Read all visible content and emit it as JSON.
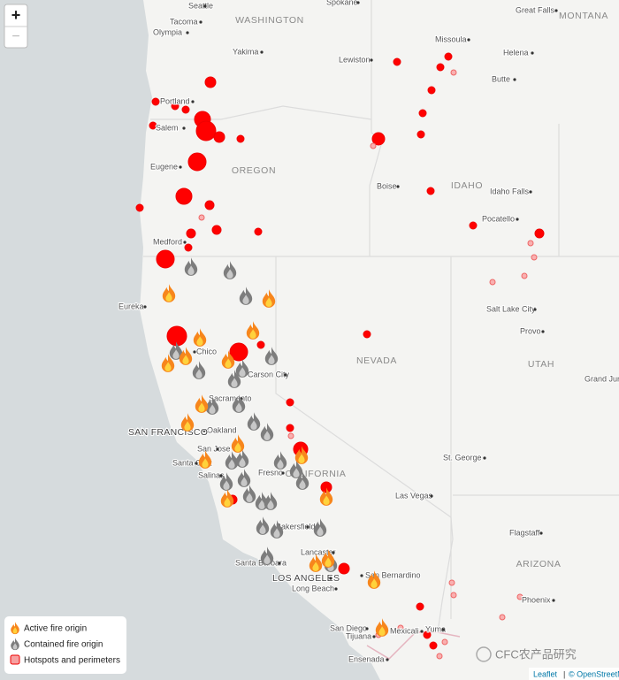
{
  "map": {
    "zoom": {
      "in": "+",
      "out": "−"
    },
    "states": [
      "WASHINGTON",
      "MONTANA",
      "OREGON",
      "IDAHO",
      "NEVADA",
      "UTAH",
      "CALIFORNIA",
      "ARIZONA"
    ],
    "cities": [
      "Seattle",
      "Spokane",
      "Great Falls",
      "Tacoma",
      "Olympia",
      "Missoula",
      "Helena",
      "Yakima",
      "Lewiston",
      "Butte",
      "Portland",
      "Salem",
      "Eugene",
      "Boise",
      "Idaho Falls",
      "Pocatello",
      "Medford",
      "Eureka",
      "Salt Lake City",
      "Provo",
      "Chico",
      "Carson City",
      "Sacramento",
      "Oakland",
      "SAN FRANCISCO",
      "San Jose",
      "Santa Cruz",
      "Salinas",
      "Fresno",
      "St. George",
      "Las Vegas",
      "Bakersfield",
      "Flagstaff",
      "Santa Barbara",
      "Lancaster",
      "LOS ANGELES",
      "Long Beach",
      "San Bernardino",
      "Phoenix",
      "San Diego",
      "Tijuana",
      "Mexicali",
      "Yuma",
      "Ensenada",
      "Grand Junction"
    ],
    "legend": [
      "Active fire origin",
      "Contained fire origin",
      "Hotspots and perimeters"
    ],
    "attribution": {
      "leaflet": "Leaflet",
      "separator": "|",
      "osm": "© OpenStreetMap"
    },
    "watermark": "CFC农产品研究"
  }
}
